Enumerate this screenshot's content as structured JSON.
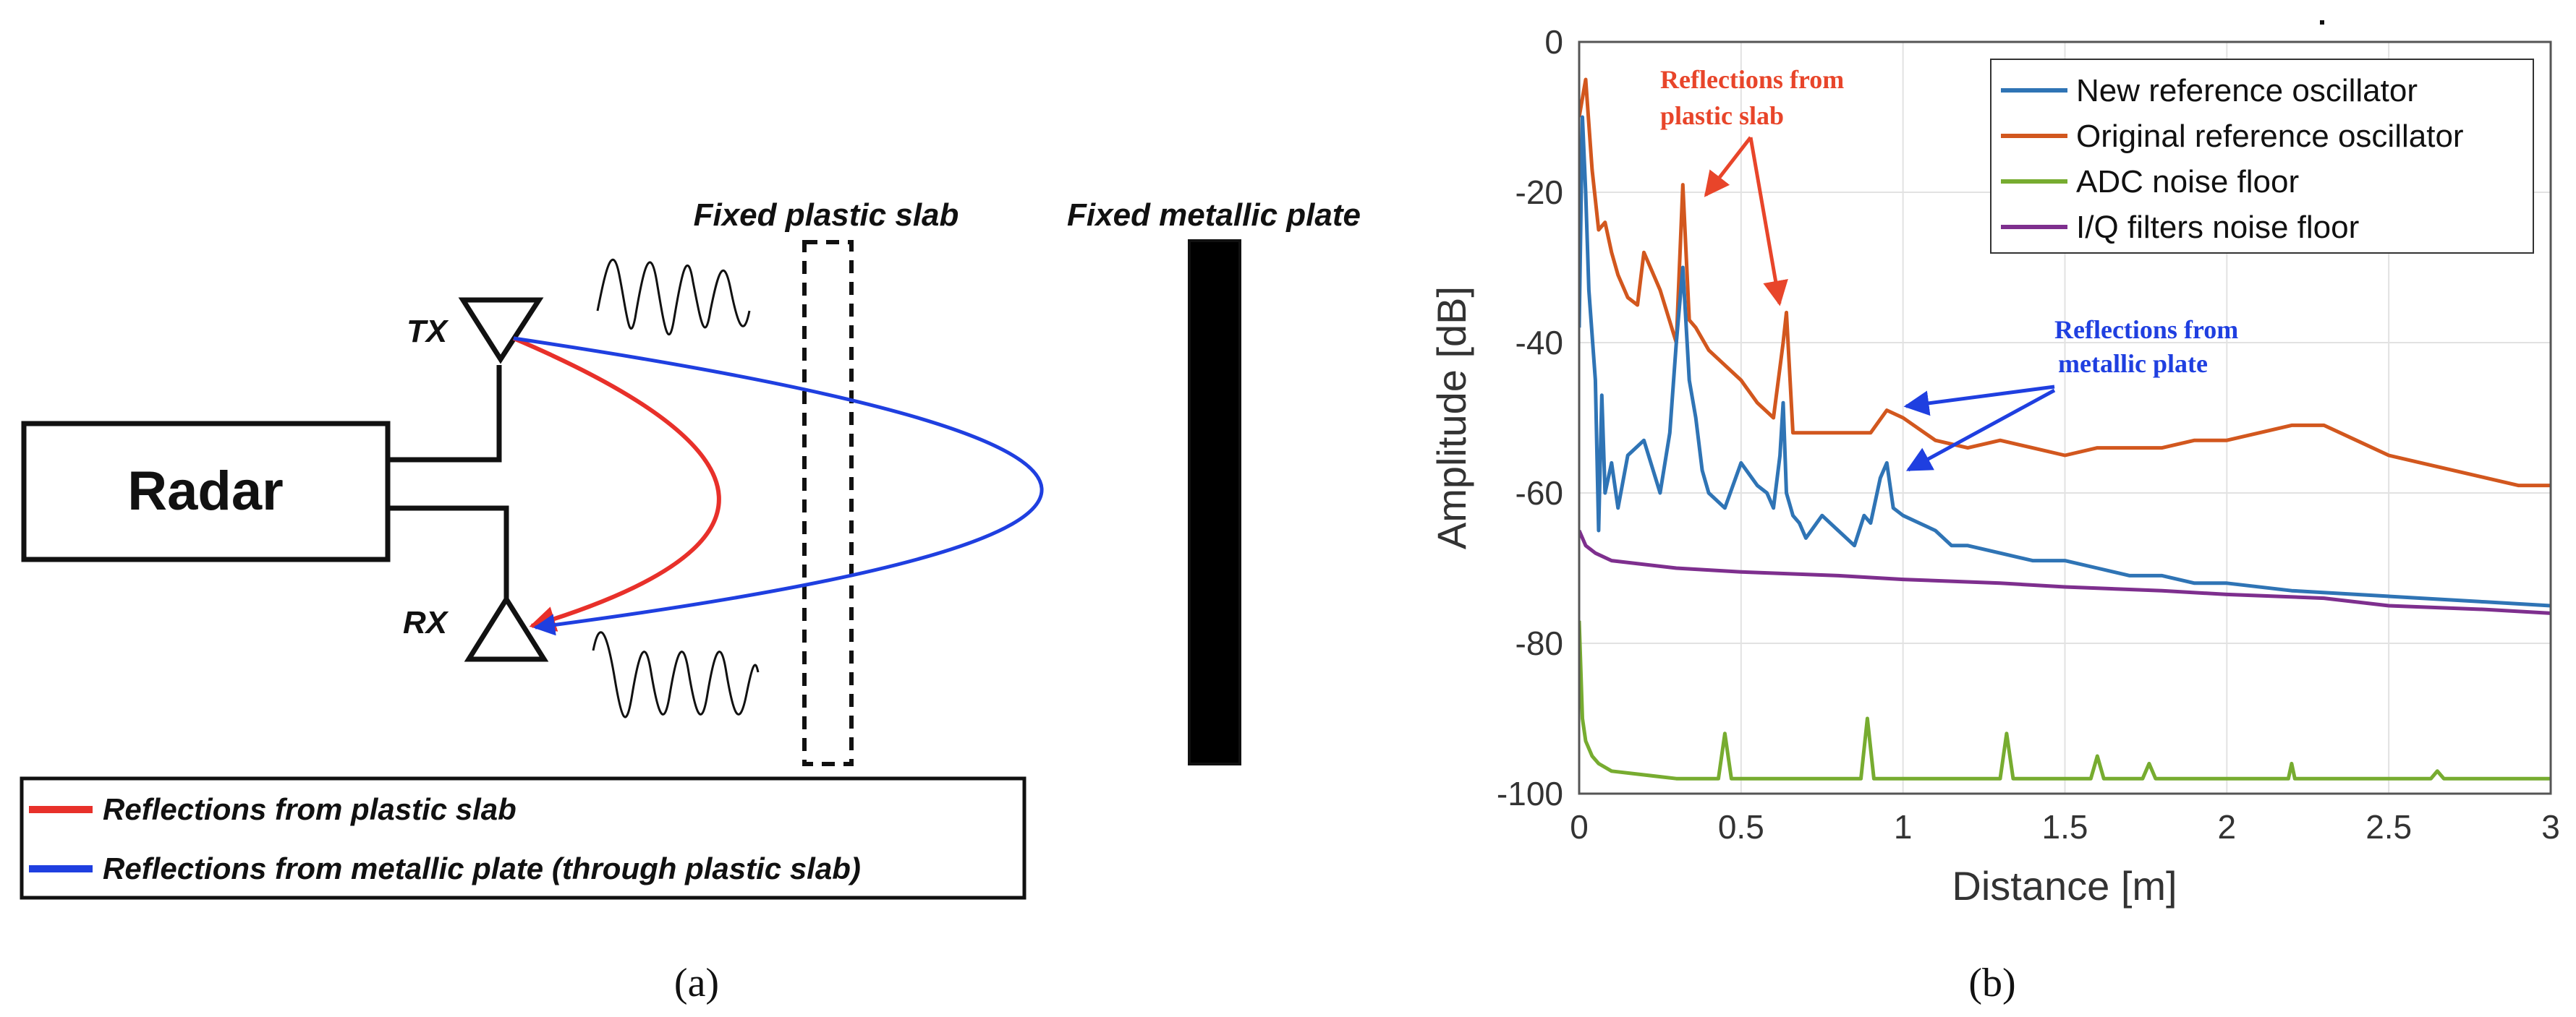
{
  "panel_a": {
    "radar_label": "Radar",
    "tx_label": "TX",
    "rx_label": "RX",
    "slab_label": "Fixed plastic slab",
    "plate_label": "Fixed metallic plate",
    "legend": [
      {
        "text": "Reflections from plastic slab",
        "color": "#e8302a"
      },
      {
        "text": "Reflections from metallic plate (through plastic slab)",
        "color": "#1f3fe0"
      }
    ],
    "caption": "(a)"
  },
  "panel_b": {
    "caption": "(b)",
    "annotations": {
      "plastic": [
        "Reflections from",
        "plastic slab"
      ],
      "plastic_color": "#e8452a",
      "metal": [
        "Reflections from",
        "metallic plate"
      ],
      "metal_color": "#1f3fe0"
    }
  },
  "chart_data": {
    "type": "line",
    "xlabel": "Distance [m]",
    "ylabel": "Amplitude [dB]",
    "xlim": [
      0,
      3
    ],
    "ylim": [
      -100,
      0
    ],
    "xticks": [
      0,
      0.5,
      1,
      1.5,
      2,
      2.5,
      3
    ],
    "xtick_labels": [
      "0",
      "0.5",
      "1",
      "1.5",
      "2",
      "2.5",
      "3"
    ],
    "yticks": [
      0,
      -20,
      -40,
      -60,
      -80,
      -100
    ],
    "ytick_labels": [
      "0",
      "-20",
      "-40",
      "-60",
      "-80",
      "-100"
    ],
    "grid": true,
    "legend_position": "top-right",
    "series": [
      {
        "name": "New reference oscillator",
        "color": "#2f74b5",
        "x": [
          0,
          0.01,
          0.02,
          0.03,
          0.05,
          0.06,
          0.07,
          0.08,
          0.1,
          0.12,
          0.15,
          0.2,
          0.25,
          0.28,
          0.3,
          0.32,
          0.34,
          0.36,
          0.38,
          0.4,
          0.45,
          0.5,
          0.55,
          0.58,
          0.6,
          0.62,
          0.63,
          0.64,
          0.66,
          0.68,
          0.7,
          0.75,
          0.8,
          0.85,
          0.88,
          0.9,
          0.93,
          0.95,
          0.97,
          1.0,
          1.05,
          1.1,
          1.15,
          1.2,
          1.3,
          1.4,
          1.5,
          1.6,
          1.7,
          1.8,
          1.9,
          2.0,
          2.2,
          2.4,
          2.6,
          2.8,
          3.0
        ],
        "y": [
          -38,
          -10,
          -20,
          -33,
          -45,
          -65,
          -47,
          -60,
          -56,
          -62,
          -55,
          -53,
          -60,
          -52,
          -40,
          -30,
          -45,
          -50,
          -57,
          -60,
          -62,
          -56,
          -59,
          -60,
          -62,
          -55,
          -48,
          -60,
          -63,
          -64,
          -66,
          -63,
          -65,
          -67,
          -63,
          -64,
          -58,
          -56,
          -62,
          -63,
          -64,
          -65,
          -67,
          -67,
          -68,
          -69,
          -69,
          -70,
          -71,
          -71,
          -72,
          -72,
          -73,
          -73.5,
          -74,
          -74.5,
          -75
        ]
      },
      {
        "name": "Original reference oscillator",
        "color": "#d2571e",
        "x": [
          0,
          0.02,
          0.04,
          0.06,
          0.08,
          0.1,
          0.12,
          0.15,
          0.18,
          0.2,
          0.25,
          0.3,
          0.32,
          0.34,
          0.36,
          0.4,
          0.45,
          0.5,
          0.55,
          0.6,
          0.63,
          0.64,
          0.66,
          0.7,
          0.8,
          0.9,
          0.95,
          1.0,
          1.1,
          1.2,
          1.3,
          1.4,
          1.5,
          1.6,
          1.7,
          1.8,
          1.9,
          2.0,
          2.1,
          2.2,
          2.3,
          2.4,
          2.5,
          2.6,
          2.7,
          2.8,
          2.9,
          3.0
        ],
        "y": [
          -10,
          -5,
          -17,
          -25,
          -24,
          -28,
          -31,
          -34,
          -35,
          -28,
          -33,
          -40,
          -19,
          -37,
          -38,
          -41,
          -43,
          -45,
          -48,
          -50,
          -40,
          -36,
          -52,
          -52,
          -52,
          -52,
          -49,
          -50,
          -53,
          -54,
          -53,
          -54,
          -55,
          -54,
          -54,
          -54,
          -53,
          -53,
          -52,
          -51,
          -51,
          -53,
          -55,
          -56,
          -57,
          -58,
          -59,
          -59
        ]
      },
      {
        "name": "ADC noise floor",
        "color": "#77ac30",
        "x": [
          0,
          0.01,
          0.02,
          0.04,
          0.06,
          0.1,
          0.2,
          0.3,
          0.4,
          0.43,
          0.45,
          0.47,
          0.6,
          0.8,
          0.87,
          0.89,
          0.91,
          1.0,
          1.2,
          1.3,
          1.32,
          1.34,
          1.5,
          1.58,
          1.6,
          1.62,
          1.74,
          1.76,
          1.78,
          2.0,
          2.19,
          2.2,
          2.21,
          2.4,
          2.63,
          2.65,
          2.67,
          2.8,
          3.0
        ],
        "y": [
          -77,
          -90,
          -93,
          -95,
          -96,
          -97,
          -97.5,
          -98,
          -98,
          -98,
          -92,
          -98,
          -98,
          -98,
          -98,
          -90,
          -98,
          -98,
          -98,
          -98,
          -92,
          -98,
          -98,
          -98,
          -95,
          -98,
          -98,
          -96,
          -98,
          -98,
          -98,
          -96,
          -98,
          -98,
          -98,
          -97,
          -98,
          -98,
          -98
        ]
      },
      {
        "name": "I/Q filters noise floor",
        "color": "#7e2f8e",
        "x": [
          0,
          0.02,
          0.05,
          0.1,
          0.3,
          0.5,
          0.8,
          1.0,
          1.3,
          1.5,
          1.8,
          2.0,
          2.3,
          2.5,
          2.8,
          3.0
        ],
        "y": [
          -65,
          -67,
          -68,
          -69,
          -70,
          -70.5,
          -71,
          -71.5,
          -72,
          -72.5,
          -73,
          -73.5,
          -74,
          -75,
          -75.5,
          -76
        ]
      }
    ]
  }
}
